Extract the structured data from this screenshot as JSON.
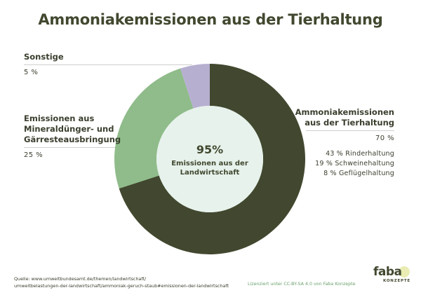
{
  "chart_data": {
    "type": "pie",
    "title": "Ammoniakemissionen aus der Tierhaltung",
    "slices": [
      {
        "name": "Ammoniakemissionen aus der Tierhaltung",
        "value": 70,
        "label": "70 %",
        "color": "#41482f"
      },
      {
        "name": "Emissionen aus Mineraldünger- und Gärresteausbringung",
        "value": 25,
        "label": "25 %",
        "color": "#8fbc8a"
      },
      {
        "name": "Sonstige",
        "value": 5,
        "label": "5 %",
        "color": "#b7afd0"
      }
    ],
    "sub_breakdown": [
      "43 % Rinderhaltung",
      "19 % Schweinehaltung",
      "8 % Geflügelhaltung"
    ],
    "center": {
      "value": "95%",
      "text_line1": "Emissionen aus der",
      "text_line2": "Landwirtschaft"
    },
    "center_color": "#e7f2ec"
  },
  "labels": {
    "sonstige_name": "Sonstige",
    "sonstige_pct": "5 %",
    "mineral_name_1": "Emissionen aus",
    "mineral_name_2": "Mineraldünger- und",
    "mineral_name_3": "Gärresteausbringung",
    "mineral_pct": "25 %",
    "tier_name_1": "Ammoniakemissionen",
    "tier_name_2": "aus der Tierhaltung",
    "tier_pct": "70 %"
  },
  "footer": {
    "source_line1": "Quelle: www.umweltbundesamt.de/themen/landwirtschaft/",
    "source_line2": "umweltbelastungen-der-landwirtschaft/ammoniak-geruch-staub#emissionen-der-landwirtschaft",
    "license": "Lizenziert unter CC-BY-SA 4.0 von Faba Konzepte",
    "logo_main": "faba",
    "logo_sub": "KONZEPTE"
  }
}
